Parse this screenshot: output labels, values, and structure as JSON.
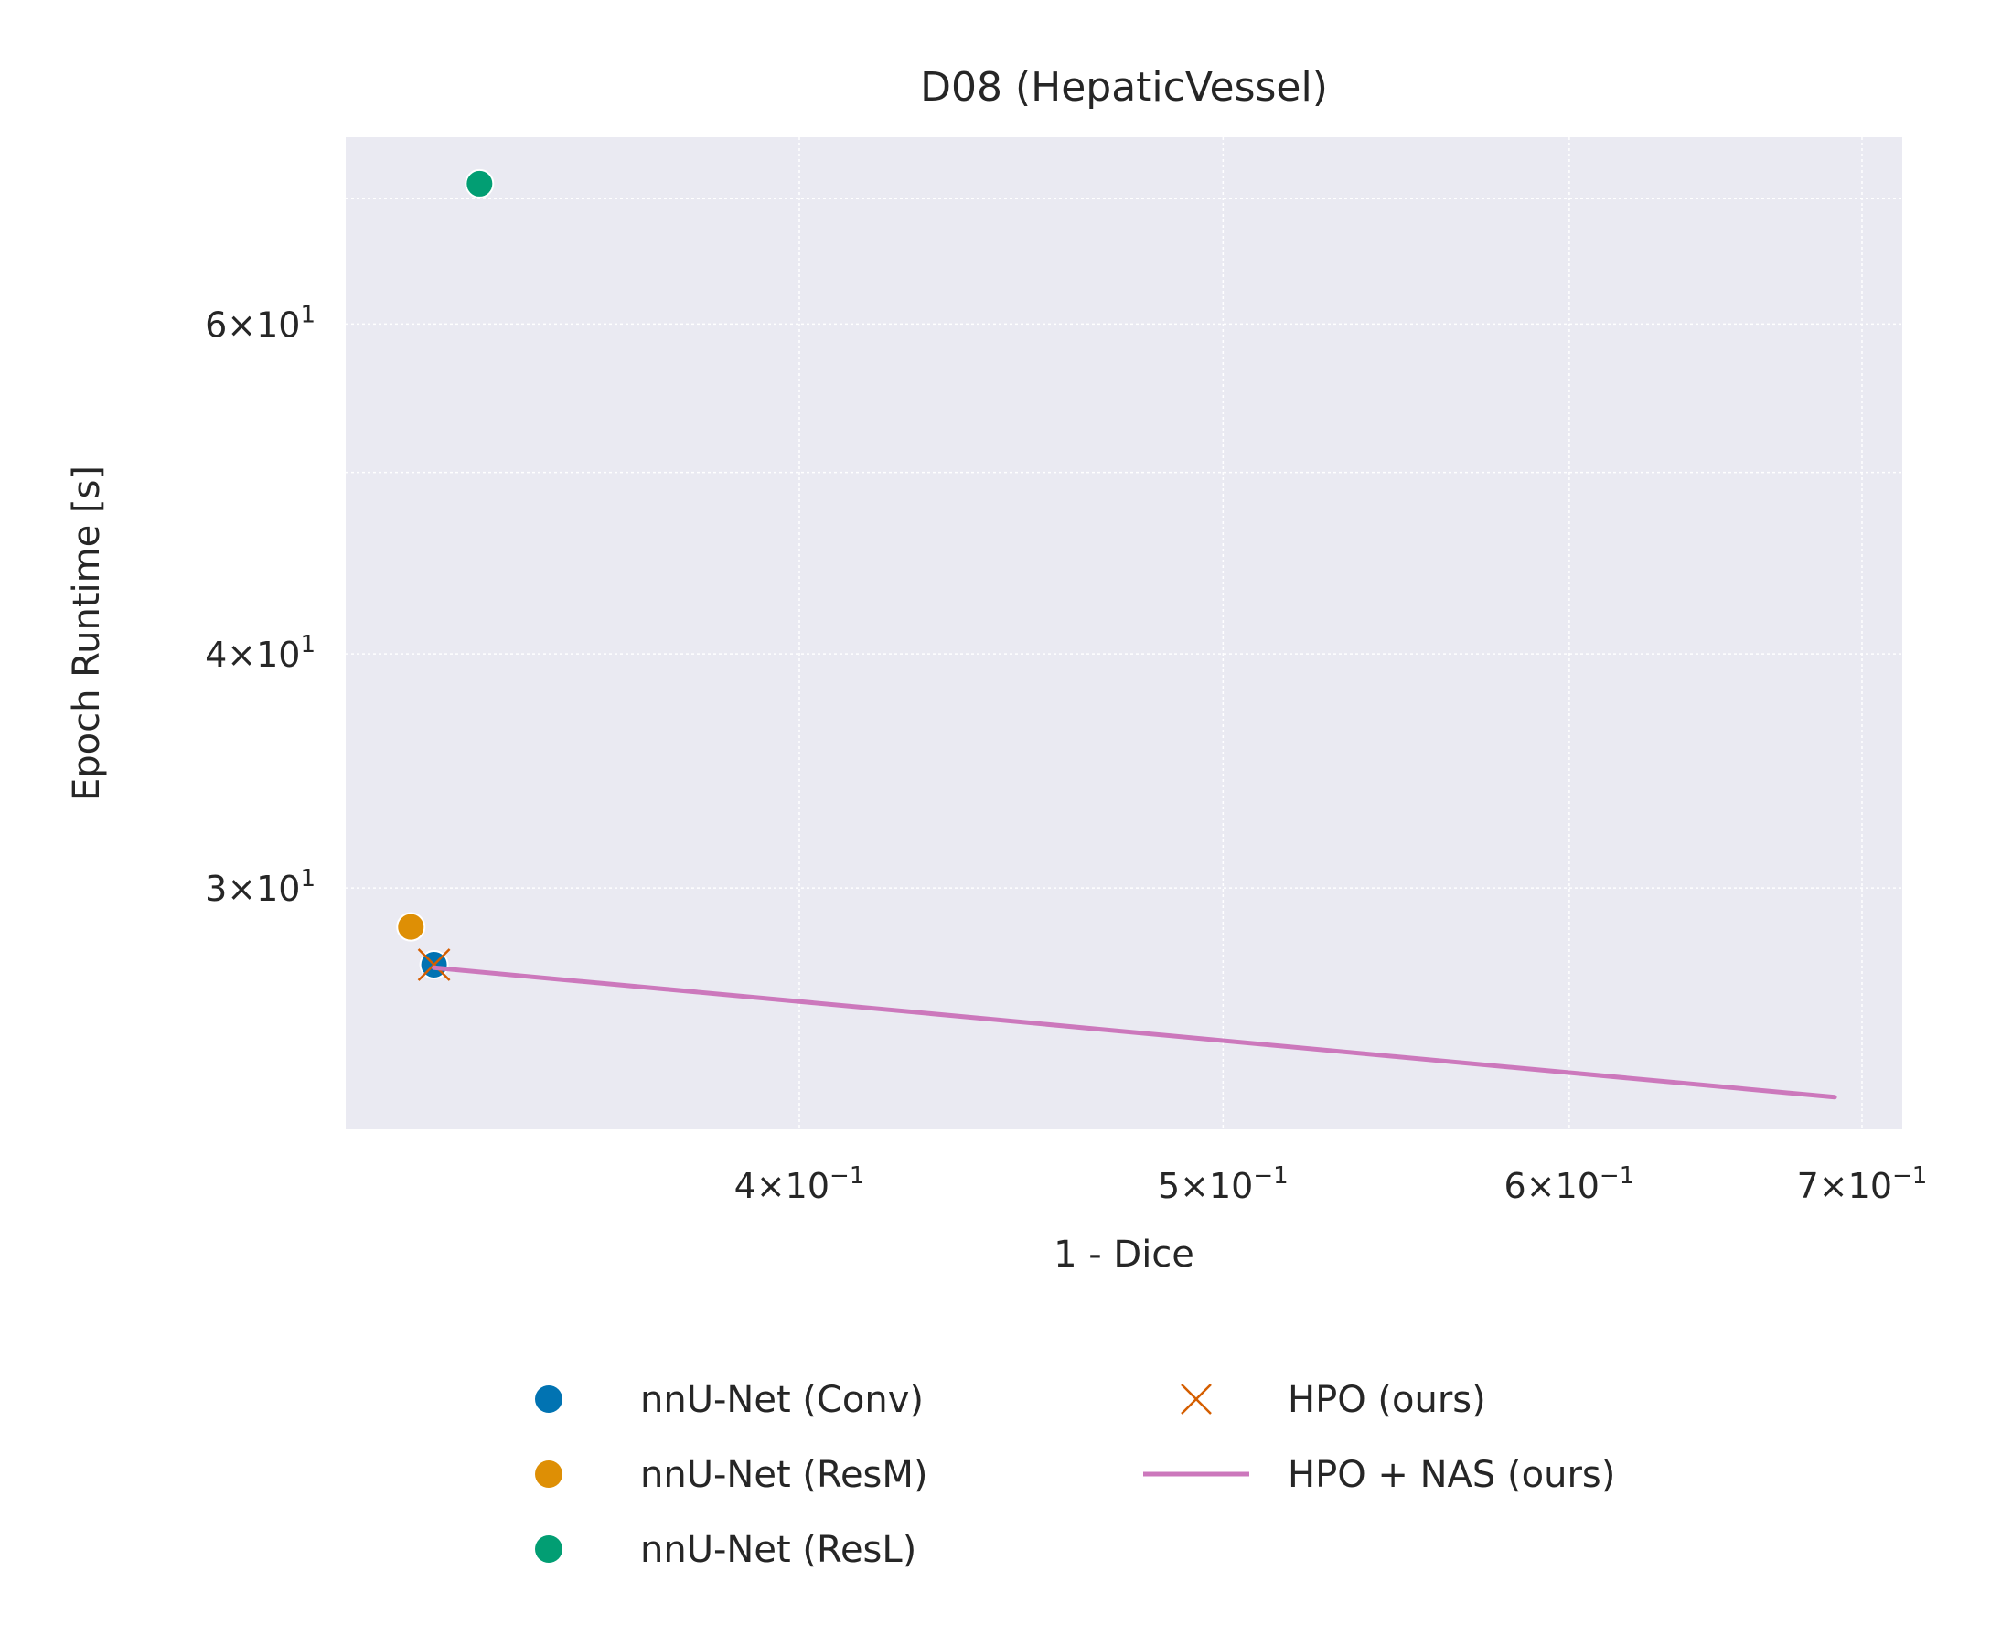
{
  "chart_data": {
    "type": "scatter",
    "title": "D08 (HepaticVessel)",
    "xlabel": "1 - Dice",
    "ylabel": "Epoch Runtime [s]",
    "xscale": "log",
    "yscale": "log",
    "xlim": [
      0.315,
      0.715
    ],
    "ylim": [
      22.3,
      75.5
    ],
    "x_ticks": [
      {
        "value": 0.4,
        "mantissa": "4",
        "base": "10",
        "exp": "−1"
      },
      {
        "value": 0.5,
        "mantissa": "5",
        "base": "10",
        "exp": "−1"
      },
      {
        "value": 0.6,
        "mantissa": "6",
        "base": "10",
        "exp": "−1"
      },
      {
        "value": 0.7,
        "mantissa": "7",
        "base": "10",
        "exp": "−1"
      }
    ],
    "y_ticks": [
      {
        "value": 30,
        "mantissa": "3",
        "base": "10",
        "exp": "1"
      },
      {
        "value": 40,
        "mantissa": "4",
        "base": "10",
        "exp": "1"
      },
      {
        "value": 60,
        "mantissa": "6",
        "base": "10",
        "exp": "1"
      }
    ],
    "y_minor_grid": [
      50,
      70
    ],
    "grid": true,
    "background": "#eaeaf2",
    "legend_position": "bottom-center",
    "series": [
      {
        "name": "nnU-Net (Conv)",
        "marker": "circle",
        "color": "#0173b2",
        "points": [
          [
            0.33,
            27.3
          ]
        ]
      },
      {
        "name": "nnU-Net (ResM)",
        "marker": "circle",
        "color": "#de8f05",
        "points": [
          [
            0.326,
            28.6
          ]
        ]
      },
      {
        "name": "nnU-Net (ResL)",
        "marker": "circle",
        "color": "#029e73",
        "points": [
          [
            0.338,
            71.3
          ]
        ]
      },
      {
        "name": "HPO (ours)",
        "marker": "x",
        "color": "#d55e00",
        "points": [
          [
            0.33,
            27.3
          ]
        ]
      },
      {
        "name": "HPO + NAS (ours)",
        "marker": "line",
        "color": "#cc78bc",
        "points": [
          [
            0.33,
            27.2
          ],
          [
            0.69,
            23.2
          ]
        ]
      }
    ]
  }
}
